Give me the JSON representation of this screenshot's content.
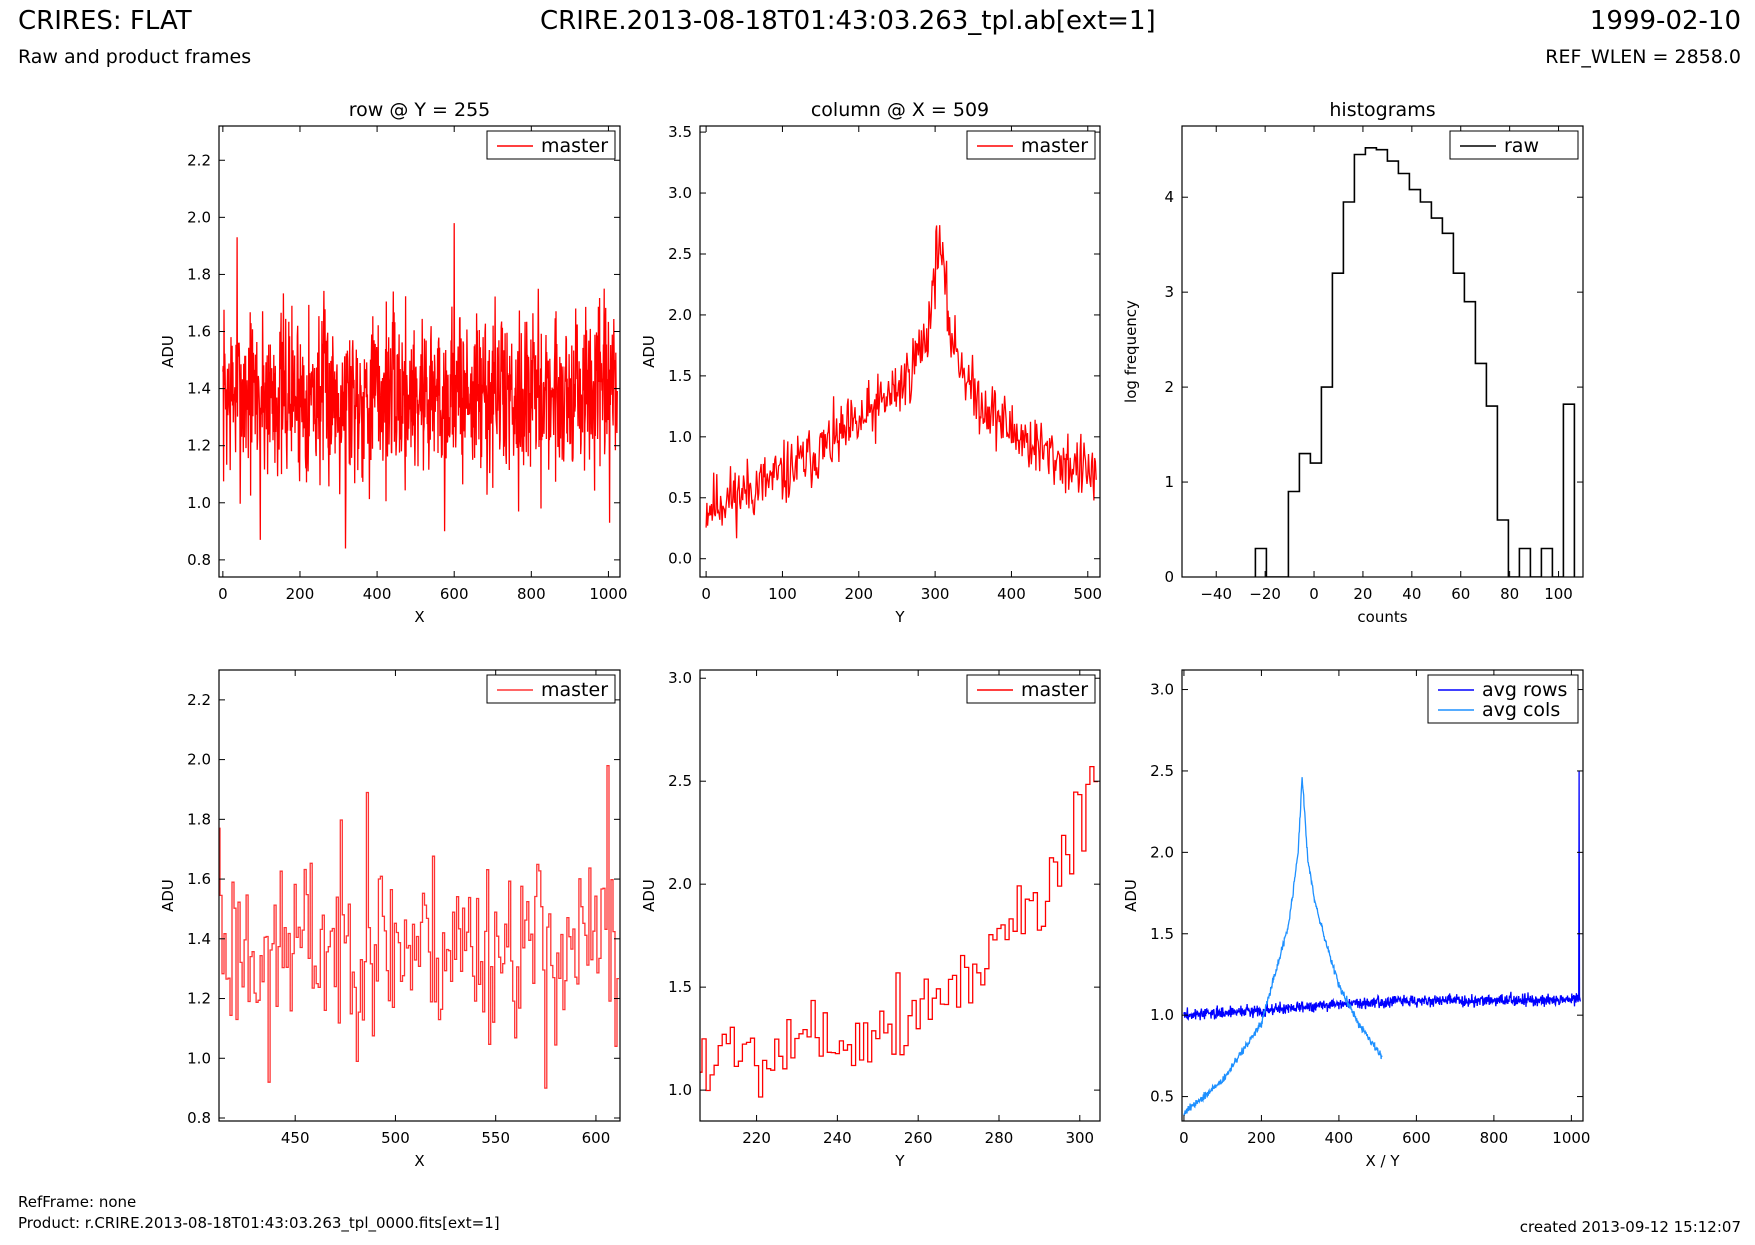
{
  "header": {
    "title_left": "CRIRES: FLAT",
    "subtitle_left": "Raw and product frames",
    "title_center": "CRIRE.2013-08-18T01:43:03.263_tpl.ab[ext=1]",
    "title_right": "1999-02-10",
    "subtitle_right": "REF_WLEN = 2858.0"
  },
  "footer": {
    "refframe": "RefFrame: none",
    "product": "Product: r.CRIRE.2013-08-18T01:43:03.263_tpl_0000.fits[ext=1]",
    "created": "created 2013-09-12 15:12:07"
  },
  "colors": {
    "master": "#ff0000",
    "master_zoom": "#ff3333",
    "raw": "#000000",
    "avg_rows": "#0000ff",
    "avg_cols": "#1e90ff"
  },
  "chart_data": [
    {
      "id": "row-plot",
      "type": "line",
      "title": "row @ Y = 255",
      "xlabel": "X",
      "ylabel": "ADU",
      "xlim": [
        -10,
        1030
      ],
      "ylim": [
        0.74,
        2.32
      ],
      "xticks": [
        0,
        200,
        400,
        600,
        800,
        1000
      ],
      "yticks": [
        0.8,
        1.0,
        1.2,
        1.4,
        1.6,
        1.8,
        2.0,
        2.2
      ],
      "legend": "top-right",
      "series": [
        {
          "name": "master",
          "color": "#ff0000",
          "gen": "noise",
          "n": 1024,
          "x0": 0,
          "dx": 1,
          "base": 1.38,
          "amp": 0.15,
          "seed": 7,
          "spikes": [
            [
              37,
              1.93
            ],
            [
              97,
              0.87
            ],
            [
              318,
              0.84
            ],
            [
              600,
              1.98
            ],
            [
              575,
              0.9
            ],
            [
              1003,
              0.93
            ]
          ]
        }
      ]
    },
    {
      "id": "column-plot",
      "type": "line",
      "title": "column @ X = 509",
      "xlabel": "Y",
      "ylabel": "ADU",
      "xlim": [
        -8,
        516
      ],
      "ylim": [
        -0.15,
        3.55
      ],
      "xticks": [
        0,
        100,
        200,
        300,
        400,
        500
      ],
      "yticks": [
        0.0,
        0.5,
        1.0,
        1.5,
        2.0,
        2.5,
        3.0,
        3.5
      ],
      "legend": "top-right",
      "series": [
        {
          "name": "master",
          "color": "#ff0000",
          "gen": "peak",
          "n": 512,
          "x0": 0,
          "dx": 1,
          "amp": 0.13,
          "seed": 11,
          "knots": [
            [
              0,
              0.42
            ],
            [
              100,
              0.68
            ],
            [
              200,
              1.1
            ],
            [
              260,
              1.45
            ],
            [
              290,
              1.85
            ],
            [
              305,
              2.65
            ],
            [
              320,
              1.85
            ],
            [
              350,
              1.35
            ],
            [
              400,
              1.05
            ],
            [
              450,
              0.85
            ],
            [
              512,
              0.68
            ]
          ]
        }
      ]
    },
    {
      "id": "histogram-plot",
      "type": "bar",
      "title": "histograms",
      "xlabel": "counts",
      "ylabel": "log frequency",
      "xlim": [
        -54,
        110
      ],
      "ylim": [
        0,
        4.75
      ],
      "xticks": [
        -40,
        -20,
        0,
        20,
        40,
        60,
        80,
        100
      ],
      "yticks": [
        0,
        1,
        2,
        3,
        4
      ],
      "legend": "top-right",
      "series": [
        {
          "name": "raw",
          "color": "#000000",
          "gen": "steps",
          "edges": [
            -24,
            -19.5,
            -15,
            -10.5,
            -6,
            -1.5,
            3,
            7.5,
            12,
            16.5,
            21,
            25.5,
            30,
            34.5,
            39,
            43.5,
            48,
            52.5,
            57,
            61.5,
            66,
            70.5,
            75,
            79.5,
            84,
            88.5,
            93,
            97.5,
            102,
            106.5
          ],
          "values": [
            0.3,
            0,
            0,
            0.9,
            1.3,
            1.2,
            2.0,
            3.2,
            3.95,
            4.45,
            4.52,
            4.5,
            4.38,
            4.25,
            4.08,
            3.95,
            3.78,
            3.62,
            3.2,
            2.9,
            2.25,
            1.8,
            0.6,
            0,
            0.3,
            0,
            0.3,
            0,
            1.82
          ]
        }
      ]
    },
    {
      "id": "row-zoom-plot",
      "type": "line",
      "title": "",
      "xlabel": "X",
      "ylabel": "ADU",
      "xlim": [
        412,
        612
      ],
      "ylim": [
        0.79,
        2.3
      ],
      "xticks": [
        450,
        500,
        550,
        600
      ],
      "yticks": [
        0.8,
        1.0,
        1.2,
        1.4,
        1.6,
        1.8,
        2.0,
        2.2
      ],
      "legend": "top-right",
      "series": [
        {
          "name": "master",
          "color": "#ff3333",
          "gen": "steps-noise",
          "n": 200,
          "x0": 412,
          "dx": 1,
          "base": 1.38,
          "amp": 0.15,
          "seed": 23,
          "spikes": [
            [
              412,
              1.77
            ],
            [
              437,
              0.92
            ],
            [
              486,
              1.89
            ],
            [
              575,
              0.9
            ],
            [
              606,
              1.98
            ],
            [
              610,
              1.04
            ]
          ]
        }
      ]
    },
    {
      "id": "column-zoom-plot",
      "type": "line",
      "title": "",
      "xlabel": "Y",
      "ylabel": "ADU",
      "xlim": [
        206,
        305
      ],
      "ylim": [
        0.85,
        3.04
      ],
      "xticks": [
        220,
        240,
        260,
        280,
        300
      ],
      "yticks": [
        1.0,
        1.5,
        2.0,
        2.5,
        3.0
      ],
      "legend": "top-right",
      "series": [
        {
          "name": "master",
          "color": "#ff0000",
          "gen": "steps-peak",
          "n": 99,
          "x0": 206,
          "dx": 1,
          "amp": 0.11,
          "seed": 5,
          "knots": [
            [
              206,
              1.15
            ],
            [
              230,
              1.25
            ],
            [
              250,
              1.3
            ],
            [
              265,
              1.45
            ],
            [
              280,
              1.7
            ],
            [
              295,
              2.1
            ],
            [
              305,
              2.55
            ]
          ]
        }
      ]
    },
    {
      "id": "average-plot",
      "type": "line",
      "title": "",
      "xlabel": "X / Y",
      "ylabel": "ADU",
      "xlim": [
        -5,
        1030
      ],
      "ylim": [
        0.35,
        3.12
      ],
      "xticks": [
        0,
        200,
        400,
        600,
        800,
        1000
      ],
      "yticks": [
        0.5,
        1.0,
        1.5,
        2.0,
        2.5,
        3.0
      ],
      "legend": "top-right",
      "series": [
        {
          "name": "avg rows",
          "color": "#0000ff",
          "gen": "noise-knots",
          "n": 1024,
          "x0": 0,
          "dx": 1,
          "amp": 0.018,
          "seed": 3,
          "knots": [
            [
              0,
              1.0
            ],
            [
              200,
              1.03
            ],
            [
              400,
              1.07
            ],
            [
              600,
              1.09
            ],
            [
              800,
              1.09
            ],
            [
              1020,
              1.1
            ]
          ],
          "spikes": [
            [
              1020,
              2.5
            ]
          ]
        },
        {
          "name": "avg cols",
          "color": "#1e90ff",
          "gen": "noise-knots",
          "n": 512,
          "x0": 0,
          "dx": 1,
          "amp": 0.012,
          "seed": 9,
          "knots": [
            [
              0,
              0.4
            ],
            [
              100,
              0.6
            ],
            [
              200,
              0.95
            ],
            [
              270,
              1.55
            ],
            [
              295,
              2.0
            ],
            [
              305,
              2.47
            ],
            [
              320,
              1.95
            ],
            [
              340,
              1.68
            ],
            [
              360,
              1.5
            ],
            [
              400,
              1.18
            ],
            [
              450,
              0.95
            ],
            [
              512,
              0.74
            ]
          ]
        }
      ]
    }
  ]
}
